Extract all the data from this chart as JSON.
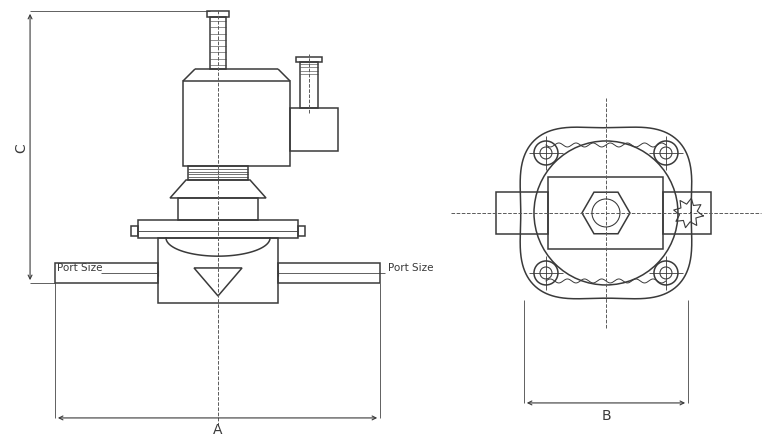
{
  "bg_color": "#ffffff",
  "line_color": "#3a3a3a",
  "dim_color": "#3a3a3a",
  "dashed_color": "#5a5a5a",
  "labels": {
    "A": "A",
    "B": "B",
    "C": "C",
    "port_size": "Port Size"
  },
  "lw_main": 1.1,
  "lw_dim": 0.8,
  "lw_thin": 0.6
}
